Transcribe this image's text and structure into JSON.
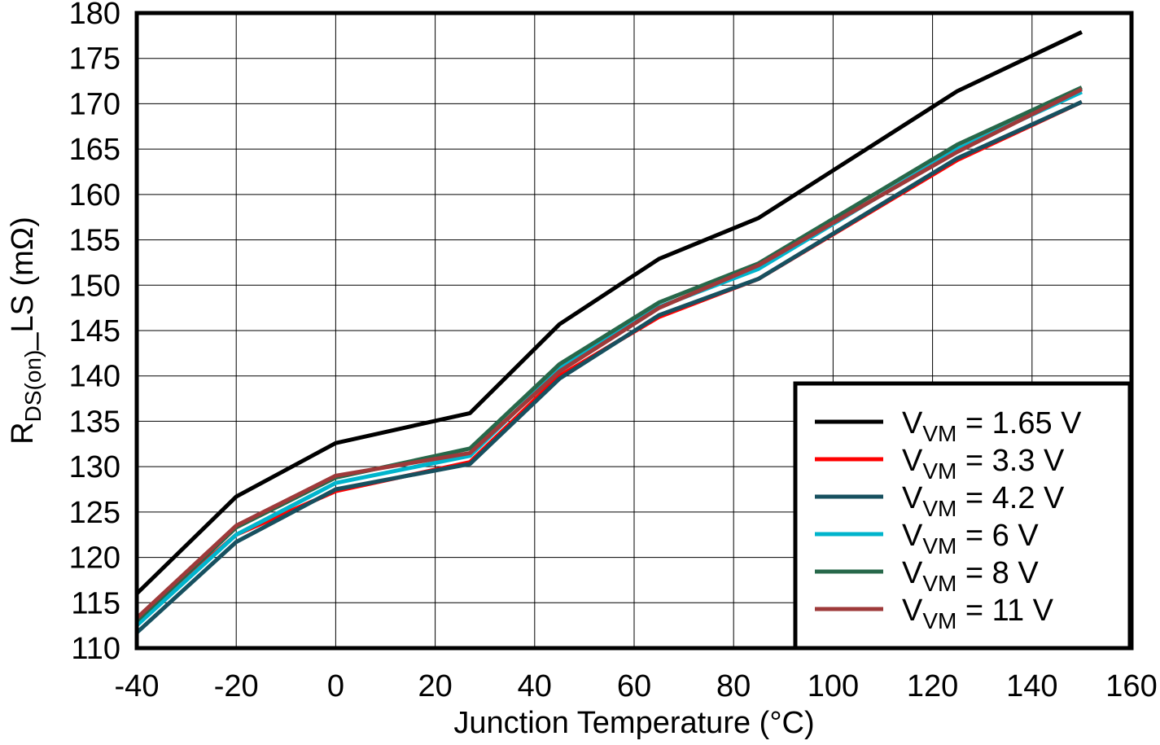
{
  "chart_data": {
    "type": "line",
    "title": "",
    "xlabel": "Junction Temperature (°C)",
    "ylabel": {
      "main": "R",
      "sub": "DS(on)",
      "suffix": "_LS (mΩ)"
    },
    "xlim": [
      -40,
      160
    ],
    "ylim": [
      110,
      180
    ],
    "xticks": [
      -40,
      -20,
      0,
      20,
      40,
      60,
      80,
      100,
      120,
      140,
      160
    ],
    "yticks": [
      110,
      115,
      120,
      125,
      130,
      135,
      140,
      145,
      150,
      155,
      160,
      165,
      170,
      175,
      180
    ],
    "grid": true,
    "legend_position": "bottom-right",
    "x": [
      -40,
      -20,
      0,
      27,
      45,
      65,
      85,
      125,
      150
    ],
    "series": [
      {
        "name": "V_VM = 1.65 V",
        "label_main": "V",
        "label_sub": "VM",
        "label_rest": " = 1.65 V",
        "color": "#000000",
        "values": [
          116.0,
          126.7,
          132.6,
          135.9,
          145.7,
          152.9,
          157.4,
          171.4,
          177.9
        ]
      },
      {
        "name": "V_VM = 3.3 V",
        "label_main": "V",
        "label_sub": "VM",
        "label_rest": " = 3.3 V",
        "color": "#ff0000",
        "values": [
          113.0,
          122.5,
          127.3,
          130.5,
          140.0,
          146.5,
          150.7,
          163.8,
          170.2
        ]
      },
      {
        "name": "V_VM = 4.2 V",
        "label_main": "V",
        "label_sub": "VM",
        "label_rest": " = 4.2 V",
        "color": "#17505f",
        "values": [
          111.7,
          121.7,
          127.5,
          130.3,
          139.7,
          146.7,
          150.7,
          164.0,
          170.2
        ]
      },
      {
        "name": "V_VM = 6 V",
        "label_main": "V",
        "label_sub": "VM",
        "label_rest": " = 6 V",
        "color": "#00b4cc",
        "values": [
          112.5,
          122.5,
          128.2,
          131.2,
          140.8,
          147.6,
          151.8,
          165.0,
          171.3
        ]
      },
      {
        "name": "V_VM = 8 V",
        "label_main": "V",
        "label_sub": "VM",
        "label_rest": " = 8 V",
        "color": "#27684a",
        "values": [
          113.0,
          123.3,
          128.8,
          132.0,
          141.3,
          148.1,
          152.4,
          165.5,
          171.8
        ]
      },
      {
        "name": "V_VM = 11 V",
        "label_main": "V",
        "label_sub": "VM",
        "label_rest": " = 11 V",
        "color": "#9e3a3a",
        "values": [
          113.3,
          123.5,
          129.0,
          131.5,
          140.5,
          147.5,
          152.2,
          164.7,
          171.6
        ]
      }
    ]
  }
}
